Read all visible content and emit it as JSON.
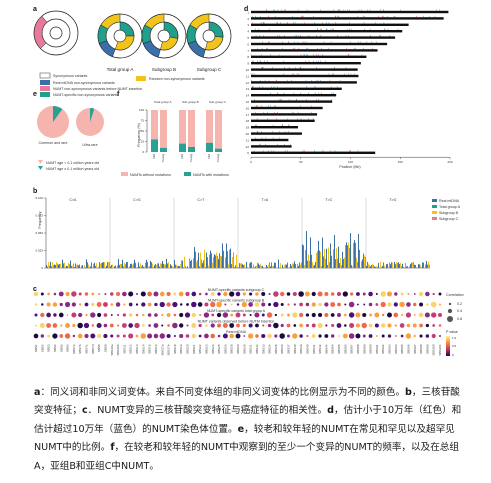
{
  "panels": {
    "a": {
      "label": "a",
      "charts": [
        "Total group A",
        "Subgroup B",
        "Subgroup C"
      ],
      "legend": [
        "Synonymous variants",
        "Real mtDNA non-synonymous variants",
        "NUMT non-synonymous variants before NUMT insertion",
        "NUMT-specific non-synonymous variants",
        "Random non-synonymous variants"
      ]
    },
    "b": {
      "label": "b",
      "ylabel": "Frequency",
      "yticks": [
        "0.100",
        "0.075",
        "0.050",
        "0.025",
        "0"
      ],
      "categories": [
        "C>A",
        "C>G",
        "C>T",
        "T>A",
        "T>C",
        "T>G"
      ],
      "legend": [
        "Real mtDNA",
        "Total group A",
        "Subgroup B",
        "Subgroup C"
      ]
    },
    "c": {
      "label": "c",
      "row_titles": [
        "NUMT-specific variants subgroup C",
        "NUMT-specific variants subgroup B",
        "NUMT-specific variants total group A",
        "NUMT variants observed before NUTM insertion",
        "Real mtDNA"
      ],
      "corr_title": "Correlation",
      "corr_ticks": [
        "0.2",
        "0.4",
        "0.6"
      ],
      "p_title": "P value",
      "p_ticks": [
        "1.0",
        "0.5",
        "0"
      ],
      "xlabels": [
        "SBS1",
        "SBS2",
        "SBS3",
        "SBS4",
        "SBS5",
        "SBS6",
        "SBS7a",
        "SBS7b",
        "SBS7c",
        "SBS7d",
        "SBS8",
        "SBS9",
        "SBS10a",
        "SBS10b",
        "SBS11",
        "SBS12",
        "SBS13",
        "SBS14",
        "SBS15",
        "SBS16",
        "SBS17a",
        "SBS17b",
        "SBS18",
        "SBS19",
        "SBS20",
        "SBS21",
        "SBS22",
        "SBS23",
        "SBS24",
        "SBS25",
        "SBS26",
        "SBS28",
        "SBS29",
        "SBS30",
        "SBS31",
        "SBS32",
        "SBS33",
        "SBS34",
        "SBS35",
        "SBS36",
        "SBS37",
        "SBS38",
        "SBS39",
        "SBS40",
        "SBS41",
        "SBS42",
        "SBS44",
        "SBS84",
        "SBS85",
        "SBS86",
        "SBS87",
        "SBS88",
        "SBS89",
        "SBS90",
        "SBS91",
        "SBS92",
        "SBS93",
        "SBS94",
        "SBS95",
        "SBS96",
        "SBS97",
        "SBS98",
        "SBS99",
        "SBS100",
        "SBS101"
      ]
    },
    "d": {
      "label": "d",
      "xlabel": "Position (Mb)",
      "xticks": [
        "0",
        "50",
        "100",
        "150",
        "200"
      ],
      "chromosomes": [
        "1",
        "2",
        "3",
        "4",
        "5",
        "6",
        "7",
        "8",
        "9",
        "10",
        "11",
        "12",
        "13",
        "14",
        "15",
        "16",
        "17",
        "18",
        "19",
        "20",
        "21",
        "22",
        "X"
      ]
    },
    "e": {
      "label": "e",
      "pies": [
        "Common and rare",
        "Ultra-rare"
      ],
      "legend": [
        "NUMT age < 0.1 million years old",
        "NUMT age ≥ 0.1 million years old"
      ]
    },
    "f": {
      "label": "f",
      "ylabel": "Frequency (%)",
      "yticks": [
        "100",
        "75",
        "50",
        "25",
        "0"
      ],
      "groups": [
        "Total group A",
        "Sub group B",
        "Sub group C"
      ],
      "bar_labels": [
        "Old",
        "Young"
      ],
      "legend": [
        "NUMTs without mutations",
        "NUMTs with mutations"
      ]
    }
  },
  "colors": {
    "synonymous": "#ffffff",
    "real": "#3b6fa8",
    "before": "#e77a9a",
    "specific": "#20a08a",
    "random": "#f2c41b",
    "pink_light": "#f6b4ae",
    "teal": "#2aa092"
  },
  "caption": {
    "a_lab": "a",
    "a_text": "：同义词和非同义词变体。来自不同变体组的非同义词变体的比例显示为不同的颜色。",
    "b_lab": "b",
    "b_text": "，三核苷酸突变特征；",
    "c_lab": "c",
    "c_text": "．NUMT变异的三核苷酸突变特征与癌症特征的相关性。",
    "d_lab": "d",
    "d_text": "，估计小于10万年（红色）和估计超过10万年（蓝色）的NUMT染色体位置。",
    "e_lab": "e",
    "e_text": "，较老和较年轻的NUMT在常见和罕见以及超罕见NUMT中的比例。",
    "f_lab": "f",
    "f_text": "，在较老和较年轻的NUMT中观察到的至少一个变异的NUMT的频率，以及在总组A，亚组B和亚组C中NUMT。"
  }
}
